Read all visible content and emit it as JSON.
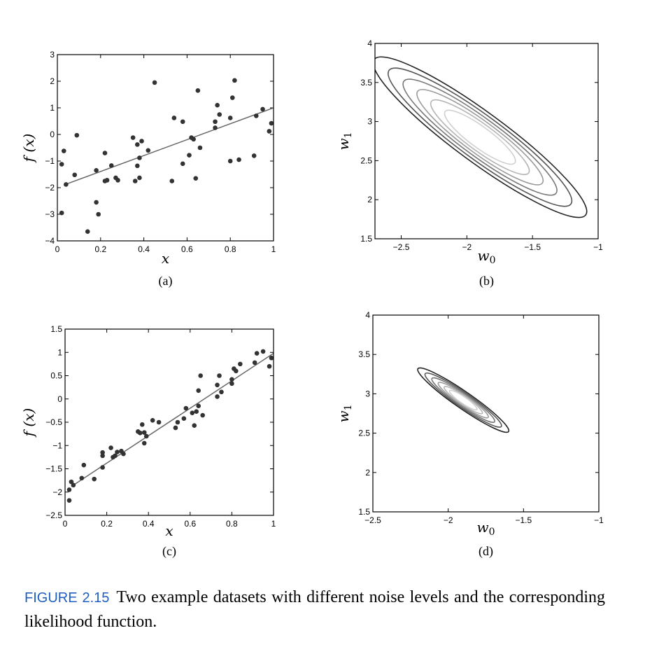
{
  "caption": {
    "label": "FIGURE 2.15",
    "text": "Two example datasets with different noise levels and the corresponding likelihood function."
  },
  "chart_data": [
    {
      "id": "a",
      "panel_label": "(a)",
      "type": "scatter",
      "xlabel": "x",
      "ylabel": "f (x)",
      "xlim": [
        0,
        1
      ],
      "ylim": [
        -4,
        3
      ],
      "xticks": [
        "0",
        "0.2",
        "0.4",
        "0.6",
        "0.8",
        "1"
      ],
      "yticks": [
        "3",
        "2",
        "1",
        "0",
        "−1",
        "−2",
        "−3",
        "−4"
      ],
      "fit_line": {
        "x": [
          0.03,
          1.0
        ],
        "y": [
          -1.9,
          1.0
        ]
      },
      "points": [
        [
          0.02,
          -1.12
        ],
        [
          0.02,
          -2.95
        ],
        [
          0.03,
          -0.62
        ],
        [
          0.04,
          -1.88
        ],
        [
          0.08,
          -1.52
        ],
        [
          0.09,
          -0.03
        ],
        [
          0.14,
          -3.65
        ],
        [
          0.18,
          -1.35
        ],
        [
          0.18,
          -2.55
        ],
        [
          0.19,
          -3.0
        ],
        [
          0.22,
          -0.7
        ],
        [
          0.22,
          -1.75
        ],
        [
          0.23,
          -1.72
        ],
        [
          0.25,
          -1.17
        ],
        [
          0.27,
          -1.63
        ],
        [
          0.28,
          -1.72
        ],
        [
          0.35,
          -0.12
        ],
        [
          0.36,
          -1.75
        ],
        [
          0.37,
          -1.18
        ],
        [
          0.37,
          -0.38
        ],
        [
          0.38,
          -0.88
        ],
        [
          0.38,
          -1.63
        ],
        [
          0.39,
          -0.25
        ],
        [
          0.42,
          -0.6
        ],
        [
          0.45,
          1.95
        ],
        [
          0.53,
          -1.75
        ],
        [
          0.54,
          0.62
        ],
        [
          0.58,
          0.48
        ],
        [
          0.58,
          -1.1
        ],
        [
          0.61,
          -0.78
        ],
        [
          0.62,
          -0.12
        ],
        [
          0.63,
          -0.18
        ],
        [
          0.64,
          -1.65
        ],
        [
          0.65,
          1.65
        ],
        [
          0.66,
          -0.5
        ],
        [
          0.73,
          0.25
        ],
        [
          0.73,
          0.48
        ],
        [
          0.74,
          1.1
        ],
        [
          0.75,
          0.75
        ],
        [
          0.8,
          0.62
        ],
        [
          0.8,
          -1.0
        ],
        [
          0.81,
          1.38
        ],
        [
          0.82,
          2.03
        ],
        [
          0.84,
          -0.95
        ],
        [
          0.91,
          -0.8
        ],
        [
          0.92,
          0.7
        ],
        [
          0.95,
          0.95
        ],
        [
          0.98,
          0.12
        ],
        [
          0.99,
          0.42
        ]
      ]
    },
    {
      "id": "b",
      "panel_label": "(b)",
      "type": "contour",
      "xlabel": "w0",
      "ylabel": "w1",
      "xlim": [
        -2.7,
        -1
      ],
      "ylim": [
        1.5,
        4
      ],
      "xticks": [
        "−2.5",
        "−2",
        "−1.5",
        "−1"
      ],
      "yticks": [
        "4",
        "3.5",
        "3",
        "2.5",
        "2",
        "1.5"
      ],
      "center": [
        -1.9,
        2.8
      ],
      "contour_colors": [
        "#222222",
        "#555555",
        "#777777",
        "#999999",
        "#b5b5b5",
        "#d0d0d0"
      ],
      "contour_scales": [
        1.0,
        0.86,
        0.72,
        0.59,
        0.46,
        0.33
      ],
      "ellipse": {
        "semi_major": 1.28,
        "semi_minor": 0.22,
        "angle_deg": -51
      }
    },
    {
      "id": "c",
      "panel_label": "(c)",
      "type": "scatter",
      "xlabel": "x",
      "ylabel": "f (x)",
      "xlim": [
        0,
        1
      ],
      "ylim": [
        -2.5,
        1.5
      ],
      "xticks": [
        "0",
        "0.2",
        "0.4",
        "0.6",
        "0.8",
        "1"
      ],
      "yticks": [
        "1.5",
        "1",
        "0.5",
        "0",
        "−0.5",
        "−1",
        "−1.5",
        "−2",
        "−2.5"
      ],
      "fit_line": {
        "x": [
          0.03,
          1.0
        ],
        "y": [
          -1.88,
          0.98
        ]
      },
      "points": [
        [
          0.02,
          -1.95
        ],
        [
          0.02,
          -2.18
        ],
        [
          0.03,
          -1.78
        ],
        [
          0.04,
          -1.85
        ],
        [
          0.08,
          -1.7
        ],
        [
          0.09,
          -1.42
        ],
        [
          0.14,
          -1.72
        ],
        [
          0.18,
          -1.15
        ],
        [
          0.18,
          -1.22
        ],
        [
          0.18,
          -1.47
        ],
        [
          0.22,
          -1.05
        ],
        [
          0.23,
          -1.25
        ],
        [
          0.24,
          -1.22
        ],
        [
          0.25,
          -1.14
        ],
        [
          0.27,
          -1.12
        ],
        [
          0.28,
          -1.18
        ],
        [
          0.35,
          -0.7
        ],
        [
          0.36,
          -0.73
        ],
        [
          0.37,
          -0.55
        ],
        [
          0.38,
          -0.95
        ],
        [
          0.38,
          -0.72
        ],
        [
          0.39,
          -0.8
        ],
        [
          0.42,
          -0.46
        ],
        [
          0.45,
          -0.5
        ],
        [
          0.53,
          -0.62
        ],
        [
          0.54,
          -0.5
        ],
        [
          0.57,
          -0.42
        ],
        [
          0.58,
          -0.2
        ],
        [
          0.61,
          -0.3
        ],
        [
          0.62,
          -0.57
        ],
        [
          0.63,
          -0.27
        ],
        [
          0.64,
          0.18
        ],
        [
          0.64,
          -0.15
        ],
        [
          0.65,
          0.5
        ],
        [
          0.66,
          -0.35
        ],
        [
          0.73,
          0.05
        ],
        [
          0.73,
          0.3
        ],
        [
          0.74,
          0.5
        ],
        [
          0.75,
          0.15
        ],
        [
          0.8,
          0.42
        ],
        [
          0.8,
          0.33
        ],
        [
          0.81,
          0.65
        ],
        [
          0.82,
          0.6
        ],
        [
          0.84,
          0.75
        ],
        [
          0.91,
          0.78
        ],
        [
          0.92,
          0.98
        ],
        [
          0.95,
          1.02
        ],
        [
          0.98,
          0.7
        ],
        [
          0.99,
          0.88
        ]
      ]
    },
    {
      "id": "d",
      "panel_label": "(d)",
      "type": "contour",
      "xlabel": "w0",
      "ylabel": "w1",
      "xlim": [
        -2.5,
        -1
      ],
      "ylim": [
        1.5,
        4
      ],
      "xticks": [
        "−2.5",
        "−2",
        "−1.5",
        "−1"
      ],
      "yticks": [
        "4",
        "3.5",
        "3",
        "2.5",
        "2",
        "1.5"
      ],
      "center": [
        -1.9,
        2.92
      ],
      "contour_colors": [
        "#222222",
        "#555555",
        "#777777",
        "#999999",
        "#b5b5b5",
        "#d0d0d0"
      ],
      "contour_scales": [
        1.0,
        0.84,
        0.69,
        0.55,
        0.42,
        0.3
      ],
      "ellipse": {
        "semi_major": 0.5,
        "semi_minor": 0.065,
        "angle_deg": -53
      }
    }
  ]
}
